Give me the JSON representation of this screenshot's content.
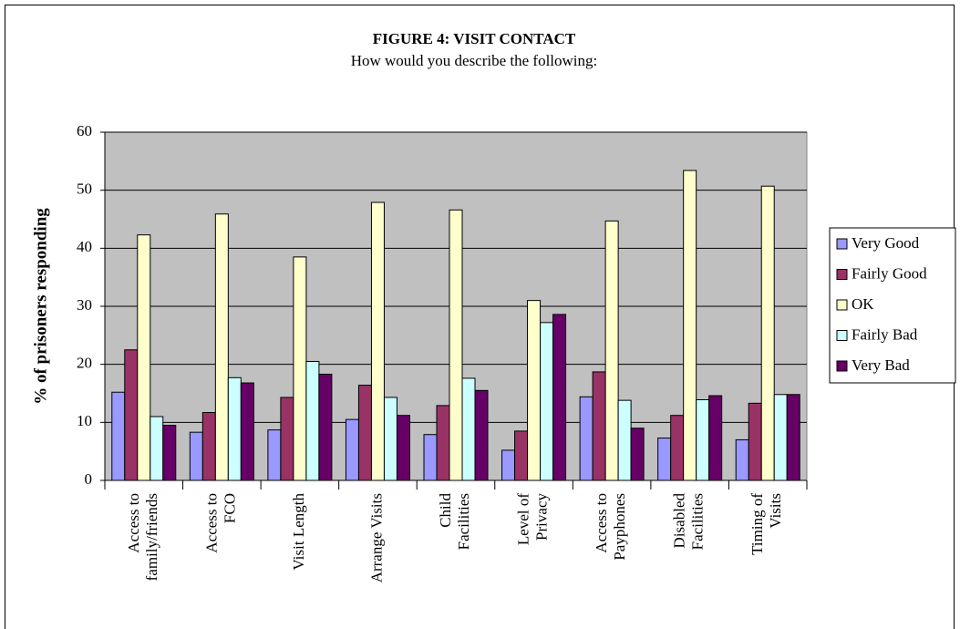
{
  "chart_data": {
    "type": "bar",
    "title": "FIGURE 4: VISIT CONTACT",
    "subtitle": "How would you describe the following:",
    "y_label": "% of prisoners responding",
    "categories": [
      "Access to\nfamily/friends",
      "Access to\nFCO",
      "Visit Length",
      "Arrange Visits",
      "Child\nFacilities",
      "Level of\nPrivacy",
      "Access to\nPayphones",
      "Disabled\nFacilities",
      "Timing of\nVisits"
    ],
    "series": [
      {
        "name": "Very Good",
        "color": "#9999ff",
        "values": [
          15.2,
          8.3,
          8.7,
          10.5,
          7.9,
          5.2,
          14.4,
          7.3,
          7.0
        ]
      },
      {
        "name": "Fairly Good",
        "color": "#993366",
        "values": [
          22.5,
          11.7,
          14.3,
          16.4,
          12.9,
          8.5,
          18.7,
          11.2,
          13.3
        ]
      },
      {
        "name": "OK",
        "color": "#ffffcc",
        "values": [
          42.3,
          45.9,
          38.5,
          47.9,
          46.6,
          31.0,
          44.7,
          53.4,
          50.7
        ]
      },
      {
        "name": "Fairly Bad",
        "color": "#ccffff",
        "values": [
          11.0,
          17.7,
          20.5,
          14.3,
          17.6,
          27.2,
          13.8,
          13.9,
          14.8
        ]
      },
      {
        "name": "Very Bad",
        "color": "#660066",
        "values": [
          9.5,
          16.8,
          18.3,
          11.2,
          15.5,
          28.6,
          9.0,
          14.6,
          14.8
        ]
      }
    ],
    "ylim": [
      0,
      60
    ],
    "yticks": [
      0,
      10,
      20,
      30,
      40,
      50,
      60
    ],
    "grid": true,
    "legend": "right",
    "plot_background": "#c0c0c0"
  }
}
